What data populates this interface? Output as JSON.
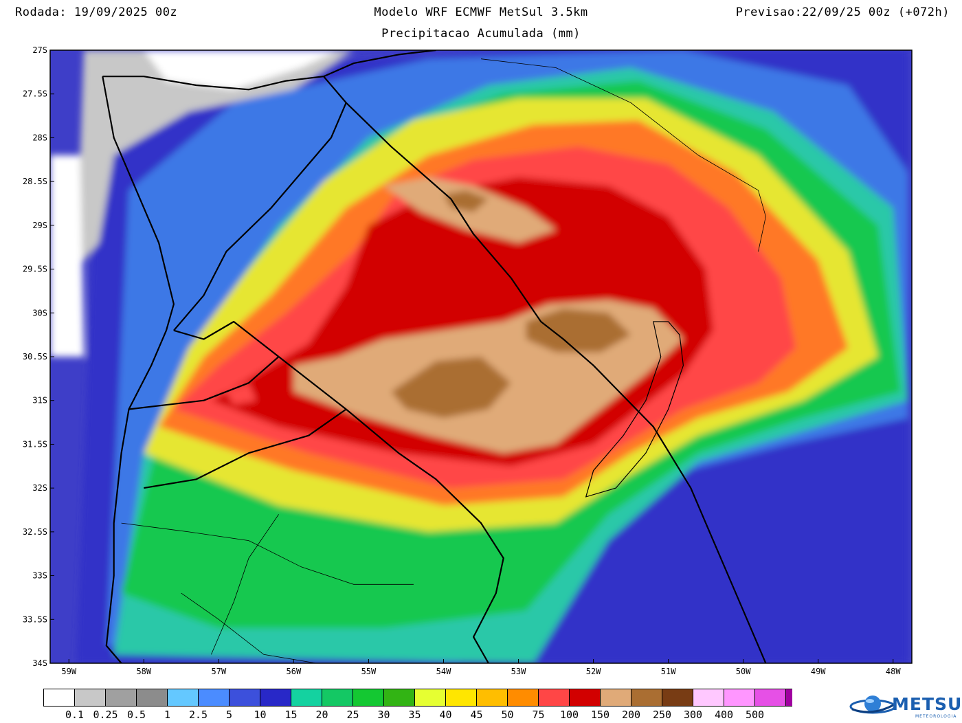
{
  "header": {
    "run": "Rodada: 19/09/2025 00z",
    "title": "Modelo WRF ECMWF MetSul 3.5km",
    "subtitle": "Precipitacao Acumulada (mm)",
    "valid": "Previsao:22/09/25 00z (+072h)"
  },
  "map": {
    "lat_range": [
      -34,
      -27
    ],
    "lon_range": [
      -59.25,
      -47.75
    ],
    "lat_labels": [
      "27S",
      "27.5S",
      "28S",
      "28.5S",
      "29S",
      "29.5S",
      "30S",
      "30.5S",
      "31S",
      "31.5S",
      "32S",
      "32.5S",
      "33S",
      "33.5S",
      "34S"
    ],
    "lon_labels": [
      "59W",
      "58W",
      "57W",
      "56W",
      "55W",
      "54W",
      "53W",
      "52W",
      "51W",
      "50W",
      "49W",
      "48W"
    ],
    "background_color": "#3e3ec8",
    "precip_regions": [
      {
        "level": "10-15",
        "color": "#3232c8",
        "poly": [
          [
            -58.9,
            -34.0
          ],
          [
            -58.6,
            -27.3
          ],
          [
            -53.0,
            -27.0
          ],
          [
            -47.8,
            -27.0
          ],
          [
            -47.8,
            -34.0
          ]
        ]
      },
      {
        "level": "5-10",
        "color": "#3c78e6",
        "poly": [
          [
            -58.5,
            -33.8
          ],
          [
            -58.2,
            -28.6
          ],
          [
            -56.8,
            -27.6
          ],
          [
            -54.2,
            -27.1
          ],
          [
            -50.8,
            -27.0
          ],
          [
            -48.6,
            -27.4
          ],
          [
            -47.8,
            -28.4
          ],
          [
            -47.8,
            -31.2
          ],
          [
            -49.4,
            -31.5
          ],
          [
            -51.2,
            -31.9
          ],
          [
            -52.6,
            -33.1
          ],
          [
            -53.8,
            -34.0
          ]
        ]
      },
      {
        "level": "15-20",
        "color": "#2ac8a8",
        "poly": [
          [
            -58.4,
            -33.9
          ],
          [
            -58.0,
            -31.6
          ],
          [
            -57.2,
            -30.2
          ],
          [
            -56.2,
            -29.0
          ],
          [
            -55.0,
            -28.0
          ],
          [
            -53.4,
            -27.4
          ],
          [
            -51.5,
            -27.2
          ],
          [
            -49.6,
            -27.7
          ],
          [
            -48.0,
            -28.8
          ],
          [
            -47.8,
            -31.0
          ],
          [
            -49.0,
            -31.3
          ],
          [
            -50.6,
            -31.7
          ],
          [
            -51.8,
            -32.6
          ],
          [
            -52.8,
            -34.0
          ]
        ]
      },
      {
        "level": "20-25",
        "color": "#18c850",
        "poly": [
          [
            -58.3,
            -33.2
          ],
          [
            -57.8,
            -31.4
          ],
          [
            -57.0,
            -30.1
          ],
          [
            -56.0,
            -28.9
          ],
          [
            -54.8,
            -28.0
          ],
          [
            -53.2,
            -27.5
          ],
          [
            -51.4,
            -27.35
          ],
          [
            -49.7,
            -27.9
          ],
          [
            -48.2,
            -29.0
          ],
          [
            -47.9,
            -30.9
          ],
          [
            -49.2,
            -31.2
          ],
          [
            -50.6,
            -31.6
          ],
          [
            -51.8,
            -32.3
          ],
          [
            -52.9,
            -33.4
          ],
          [
            -54.8,
            -33.6
          ],
          [
            -57.0,
            -33.6
          ]
        ]
      },
      {
        "level": "30-35",
        "color": "#e6e632",
        "poly": [
          [
            -58.0,
            -31.6
          ],
          [
            -57.4,
            -30.4
          ],
          [
            -56.6,
            -29.5
          ],
          [
            -55.6,
            -28.5
          ],
          [
            -54.4,
            -27.8
          ],
          [
            -53.0,
            -27.55
          ],
          [
            -51.3,
            -27.55
          ],
          [
            -49.8,
            -28.2
          ],
          [
            -48.6,
            -29.3
          ],
          [
            -48.2,
            -30.5
          ],
          [
            -49.2,
            -31.0
          ],
          [
            -50.6,
            -31.4
          ],
          [
            -51.6,
            -31.9
          ],
          [
            -52.5,
            -32.4
          ],
          [
            -54.2,
            -32.5
          ],
          [
            -56.2,
            -32.2
          ]
        ]
      },
      {
        "level": "50-75",
        "color": "#ff7828",
        "poly": [
          [
            -57.8,
            -31.3
          ],
          [
            -57.2,
            -30.5
          ],
          [
            -56.3,
            -29.8
          ],
          [
            -55.3,
            -28.8
          ],
          [
            -54.2,
            -28.2
          ],
          [
            -52.8,
            -27.85
          ],
          [
            -51.4,
            -27.8
          ],
          [
            -50.1,
            -28.4
          ],
          [
            -49.0,
            -29.4
          ],
          [
            -48.6,
            -30.4
          ],
          [
            -49.4,
            -30.9
          ],
          [
            -50.6,
            -31.2
          ],
          [
            -51.5,
            -31.6
          ],
          [
            -52.4,
            -32.1
          ],
          [
            -54.0,
            -32.2
          ],
          [
            -56.0,
            -31.8
          ]
        ]
      },
      {
        "level": "75-100",
        "color": "#ff4646",
        "poly": [
          [
            -57.6,
            -31.1
          ],
          [
            -57.0,
            -30.6
          ],
          [
            -56.1,
            -30.0
          ],
          [
            -55.2,
            -29.3
          ],
          [
            -54.6,
            -28.6
          ],
          [
            -53.6,
            -28.25
          ],
          [
            -52.2,
            -28.1
          ],
          [
            -51.0,
            -28.3
          ],
          [
            -50.2,
            -28.8
          ],
          [
            -49.5,
            -29.6
          ],
          [
            -49.3,
            -30.4
          ],
          [
            -49.8,
            -30.8
          ],
          [
            -50.8,
            -31.1
          ],
          [
            -51.6,
            -31.5
          ],
          [
            -52.4,
            -31.9
          ],
          [
            -53.9,
            -32.0
          ],
          [
            -55.8,
            -31.6
          ]
        ]
      },
      {
        "level": "100-150",
        "color": "#d20000",
        "poly": [
          [
            -57.1,
            -31.0
          ],
          [
            -56.5,
            -30.7
          ],
          [
            -55.8,
            -30.35
          ],
          [
            -55.3,
            -29.7
          ],
          [
            -55.0,
            -29.0
          ],
          [
            -54.2,
            -28.65
          ],
          [
            -53.0,
            -28.45
          ],
          [
            -51.8,
            -28.55
          ],
          [
            -51.0,
            -28.9
          ],
          [
            -50.5,
            -29.5
          ],
          [
            -50.4,
            -30.2
          ],
          [
            -50.8,
            -30.7
          ],
          [
            -51.4,
            -31.1
          ],
          [
            -52.0,
            -31.5
          ],
          [
            -53.1,
            -31.75
          ],
          [
            -54.6,
            -31.6
          ],
          [
            -56.2,
            -31.3
          ]
        ]
      },
      {
        "level": "150-200",
        "color": "#e0aa78",
        "poly": [
          [
            -56.0,
            -30.6
          ],
          [
            -55.4,
            -30.5
          ],
          [
            -54.8,
            -30.3
          ],
          [
            -54.0,
            -30.2
          ],
          [
            -53.2,
            -30.1
          ],
          [
            -52.6,
            -29.9
          ],
          [
            -51.8,
            -29.85
          ],
          [
            -51.2,
            -29.95
          ],
          [
            -50.8,
            -30.3
          ],
          [
            -51.3,
            -30.7
          ],
          [
            -51.9,
            -31.1
          ],
          [
            -52.5,
            -31.5
          ],
          [
            -53.2,
            -31.6
          ],
          [
            -54.2,
            -31.4
          ],
          [
            -55.2,
            -31.15
          ],
          [
            -56.0,
            -30.9
          ]
        ]
      },
      {
        "level": "150-200",
        "color": "#e0aa78",
        "poly": [
          [
            -54.8,
            -28.55
          ],
          [
            -54.2,
            -28.45
          ],
          [
            -53.6,
            -28.55
          ],
          [
            -52.9,
            -28.8
          ],
          [
            -52.5,
            -29.05
          ],
          [
            -53.0,
            -29.2
          ],
          [
            -53.7,
            -29.05
          ],
          [
            -54.3,
            -28.85
          ]
        ]
      },
      {
        "level": "200-250",
        "color": "#aa6e32",
        "poly": [
          [
            -54.7,
            -30.9
          ],
          [
            -54.1,
            -30.55
          ],
          [
            -53.5,
            -30.5
          ],
          [
            -53.1,
            -30.8
          ],
          [
            -53.4,
            -31.1
          ],
          [
            -54.0,
            -31.2
          ],
          [
            -54.5,
            -31.1
          ]
        ]
      },
      {
        "level": "200-250",
        "color": "#aa6e32",
        "poly": [
          [
            -52.9,
            -30.1
          ],
          [
            -52.4,
            -29.95
          ],
          [
            -51.8,
            -30.0
          ],
          [
            -51.5,
            -30.25
          ],
          [
            -51.9,
            -30.45
          ],
          [
            -52.5,
            -30.45
          ],
          [
            -52.9,
            -30.3
          ]
        ]
      },
      {
        "level": "200-250",
        "color": "#aa6e32",
        "poly": [
          [
            -54.0,
            -28.65
          ],
          [
            -53.7,
            -28.6
          ],
          [
            -53.4,
            -28.7
          ],
          [
            -53.6,
            -28.85
          ],
          [
            -53.9,
            -28.8
          ]
        ]
      },
      {
        "level": "75-100",
        "color": "#ff4646",
        "poly": [
          [
            -56.9,
            -30.9
          ],
          [
            -56.6,
            -30.8
          ],
          [
            -56.5,
            -31.0
          ],
          [
            -56.8,
            -31.05
          ]
        ]
      },
      {
        "level": "0.1-0.25",
        "color": "#c8c8c8",
        "poly": [
          [
            -58.8,
            -27.0
          ],
          [
            -55.2,
            -27.0
          ],
          [
            -56.0,
            -27.45
          ],
          [
            -57.4,
            -27.7
          ],
          [
            -58.4,
            -28.2
          ],
          [
            -58.6,
            -29.2
          ],
          [
            -58.9,
            -29.5
          ]
        ]
      },
      {
        "level": "<0.1",
        "color": "#ffffff",
        "poly": [
          [
            -58.0,
            -27.0
          ],
          [
            -55.4,
            -27.0
          ],
          [
            -55.9,
            -27.2
          ],
          [
            -56.8,
            -27.45
          ],
          [
            -57.7,
            -27.35
          ]
        ]
      },
      {
        "level": "<0.1",
        "color": "#ffffff",
        "poly": [
          [
            -59.25,
            -28.2
          ],
          [
            -58.85,
            -28.2
          ],
          [
            -58.8,
            -30.5
          ],
          [
            -59.25,
            -30.5
          ]
        ]
      }
    ],
    "boundaries": [
      [
        [
          -58.55,
          -27.3
        ],
        [
          -58.0,
          -27.3
        ],
        [
          -57.3,
          -27.4
        ],
        [
          -56.6,
          -27.45
        ],
        [
          -56.1,
          -27.35
        ],
        [
          -55.6,
          -27.3
        ],
        [
          -55.3,
          -27.6
        ],
        [
          -55.0,
          -27.85
        ],
        [
          -54.7,
          -28.1
        ],
        [
          -54.3,
          -28.4
        ],
        [
          -53.9,
          -28.7
        ],
        [
          -53.6,
          -29.1
        ],
        [
          -53.1,
          -29.6
        ],
        [
          -52.7,
          -30.1
        ],
        [
          -52.4,
          -30.3
        ],
        [
          -52.0,
          -30.6
        ],
        [
          -51.2,
          -31.3
        ],
        [
          -50.7,
          -32.0
        ],
        [
          -50.4,
          -32.6
        ],
        [
          -50.0,
          -33.4
        ],
        [
          -49.7,
          -34.0
        ]
      ],
      [
        [
          -58.55,
          -27.3
        ],
        [
          -58.4,
          -28.0
        ],
        [
          -58.1,
          -28.6
        ],
        [
          -57.8,
          -29.2
        ],
        [
          -57.6,
          -29.9
        ],
        [
          -57.7,
          -30.2
        ],
        [
          -57.9,
          -30.6
        ],
        [
          -58.2,
          -31.1
        ],
        [
          -58.3,
          -31.6
        ],
        [
          -58.4,
          -32.4
        ],
        [
          -58.4,
          -33.0
        ],
        [
          -58.5,
          -33.8
        ],
        [
          -58.3,
          -34.0
        ]
      ],
      [
        [
          -55.3,
          -27.6
        ],
        [
          -55.5,
          -28.0
        ],
        [
          -55.9,
          -28.4
        ],
        [
          -56.3,
          -28.8
        ],
        [
          -56.9,
          -29.3
        ],
        [
          -57.2,
          -29.8
        ],
        [
          -57.6,
          -30.2
        ]
      ],
      [
        [
          -57.6,
          -30.2
        ],
        [
          -57.2,
          -30.3
        ],
        [
          -56.8,
          -30.1
        ],
        [
          -56.2,
          -30.5
        ],
        [
          -55.6,
          -30.9
        ],
        [
          -55.3,
          -31.1
        ],
        [
          -54.6,
          -31.6
        ],
        [
          -54.1,
          -31.9
        ],
        [
          -53.5,
          -32.4
        ],
        [
          -53.2,
          -32.8
        ],
        [
          -53.3,
          -33.2
        ],
        [
          -53.6,
          -33.7
        ],
        [
          -53.4,
          -34.0
        ]
      ],
      [
        [
          -58.2,
          -31.1
        ],
        [
          -57.2,
          -31.0
        ],
        [
          -56.6,
          -30.8
        ],
        [
          -56.2,
          -30.5
        ]
      ],
      [
        [
          -55.6,
          -27.3
        ],
        [
          -55.2,
          -27.15
        ],
        [
          -54.6,
          -27.05
        ],
        [
          -54.1,
          -27.0
        ]
      ],
      [
        [
          -55.3,
          -31.1
        ],
        [
          -55.8,
          -31.4
        ],
        [
          -56.6,
          -31.6
        ],
        [
          -57.3,
          -31.9
        ],
        [
          -58.0,
          -32.0
        ]
      ]
    ],
    "state_lines": [
      [
        [
          -53.5,
          -27.1
        ],
        [
          -52.5,
          -27.2
        ],
        [
          -51.5,
          -27.6
        ],
        [
          -50.6,
          -28.2
        ],
        [
          -49.8,
          -28.6
        ],
        [
          -49.7,
          -28.9
        ],
        [
          -49.8,
          -29.3
        ]
      ],
      [
        [
          -58.3,
          -32.4
        ],
        [
          -57.4,
          -32.5
        ],
        [
          -56.6,
          -32.6
        ],
        [
          -55.9,
          -32.9
        ],
        [
          -55.2,
          -33.1
        ],
        [
          -54.4,
          -33.1
        ]
      ],
      [
        [
          -57.5,
          -33.2
        ],
        [
          -57.0,
          -33.5
        ],
        [
          -56.4,
          -33.9
        ],
        [
          -55.7,
          -34.0
        ]
      ],
      [
        [
          -56.2,
          -32.3
        ],
        [
          -56.6,
          -32.8
        ],
        [
          -56.8,
          -33.3
        ],
        [
          -57.1,
          -33.9
        ]
      ]
    ],
    "lagoon": [
      [
        -51.2,
        -30.1
      ],
      [
        -51.1,
        -30.5
      ],
      [
        -51.3,
        -31.0
      ],
      [
        -51.6,
        -31.4
      ],
      [
        -52.0,
        -31.8
      ],
      [
        -52.1,
        -32.1
      ],
      [
        -51.7,
        -32.0
      ],
      [
        -51.3,
        -31.6
      ],
      [
        -51.0,
        -31.1
      ],
      [
        -50.8,
        -30.6
      ],
      [
        -50.85,
        -30.25
      ],
      [
        -51.0,
        -30.1
      ]
    ]
  },
  "legend": {
    "colors": [
      "#ffffff",
      "#c8c8c8",
      "#a0a0a0",
      "#8c8c8c",
      "#64c8ff",
      "#4b8cff",
      "#3c50dc",
      "#2828c8",
      "#14d2a0",
      "#14c864",
      "#14c832",
      "#32b414",
      "#e6ff32",
      "#ffe600",
      "#ffbe00",
      "#ff8c00",
      "#ff4646",
      "#d20000",
      "#e0aa78",
      "#aa6e32",
      "#783c14",
      "#ffc8ff",
      "#ff96ff",
      "#e650e6",
      "#a000a0"
    ],
    "labels": [
      "0.1",
      "0.25",
      "0.5",
      "1",
      "2.5",
      "5",
      "10",
      "15",
      "20",
      "25",
      "30",
      "35",
      "40",
      "45",
      "50",
      "75",
      "100",
      "150",
      "200",
      "250",
      "300",
      "400",
      "500"
    ]
  },
  "logo": {
    "text": "METSUL",
    "subtext": "METEOROLOGIA"
  }
}
